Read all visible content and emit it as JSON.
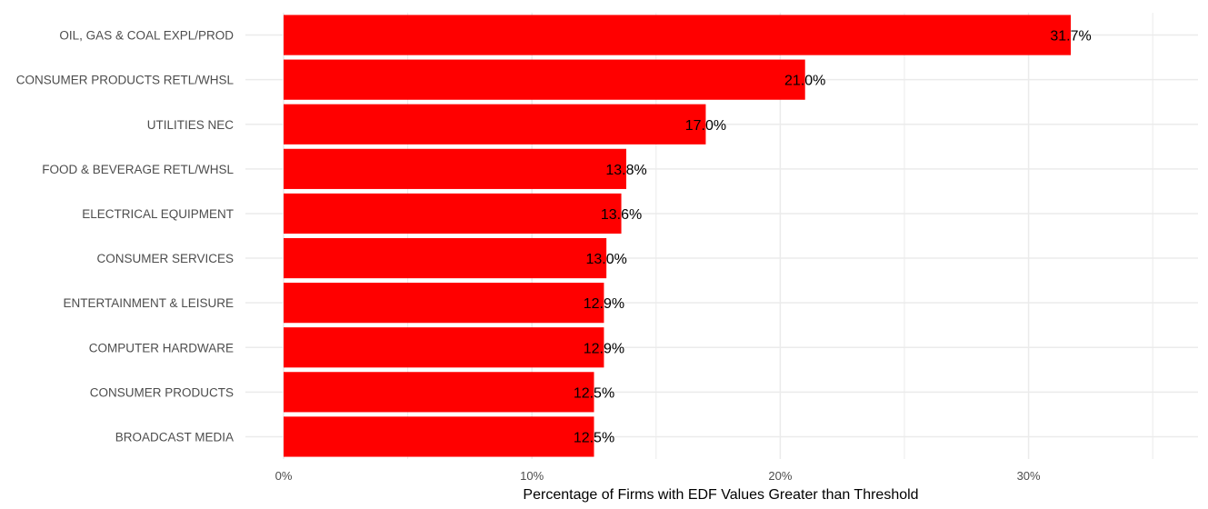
{
  "chart_data": {
    "type": "bar",
    "orientation": "horizontal",
    "categories": [
      "OIL, GAS & COAL EXPL/PROD",
      "CONSUMER PRODUCTS RETL/WHSL",
      "UTILITIES NEC",
      "FOOD & BEVERAGE RETL/WHSL",
      "ELECTRICAL EQUIPMENT",
      "CONSUMER SERVICES",
      "ENTERTAINMENT & LEISURE",
      "COMPUTER HARDWARE",
      "CONSUMER PRODUCTS",
      "BROADCAST MEDIA"
    ],
    "values": [
      31.7,
      21.0,
      17.0,
      13.8,
      13.6,
      13.0,
      12.9,
      12.9,
      12.5,
      12.5
    ],
    "data_labels": [
      "31.7%",
      "21.0%",
      "17.0%",
      "13.8%",
      "13.6%",
      "13.0%",
      "12.9%",
      "12.9%",
      "12.5%",
      "12.5%"
    ],
    "xlabel": "Percentage of Firms with EDF Values Greater than Threshold",
    "ylabel": "",
    "xlim": [
      0,
      36.8
    ],
    "x_ticks": [
      0,
      10,
      20,
      30
    ],
    "x_tick_labels": [
      "0%",
      "10%",
      "20%",
      "30%"
    ],
    "x_minor_ticks": [
      5,
      15,
      25,
      35
    ],
    "grid": true,
    "legend": "none",
    "colors": {
      "bar": "#ff0000",
      "grid": "#ebebeb",
      "tick_text": "#4d4d4d",
      "label_text": "#000000"
    }
  }
}
